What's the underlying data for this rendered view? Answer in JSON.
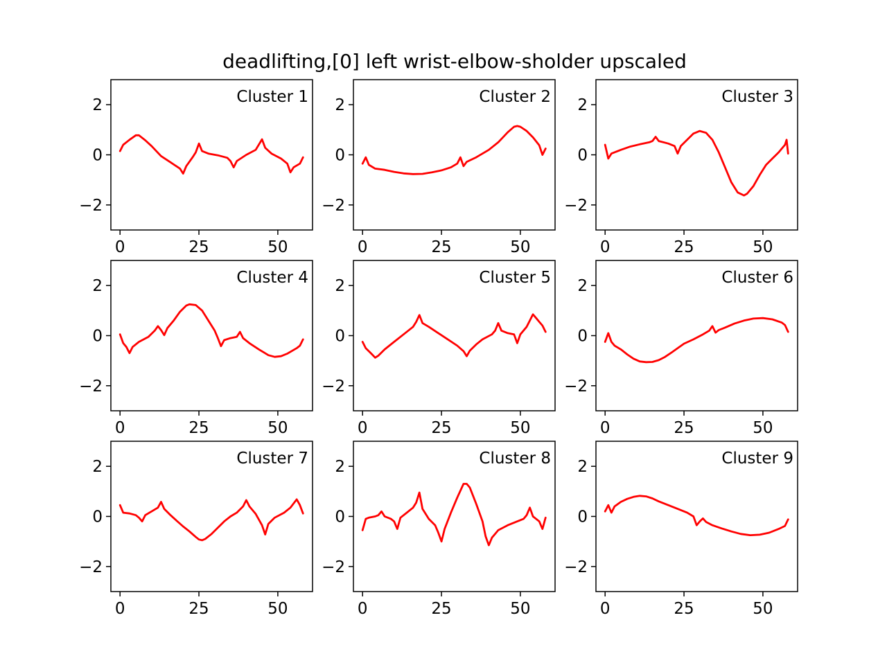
{
  "title": "deadlifting,[0] left wrist-elbow-sholder upscaled",
  "line_color": "#ff0000",
  "chart_data": {
    "type": "line",
    "layout": "3x3 grid of subplots",
    "xlim": [
      -2.9,
      61
    ],
    "ylim": [
      -3,
      3
    ],
    "x_ticks": [
      0,
      25,
      50
    ],
    "y_ticks": [
      -2,
      0,
      2
    ],
    "y_tick_labels": [
      "−2",
      "0",
      "2"
    ],
    "grid": false,
    "legend": "none",
    "panels": [
      {
        "label": "Cluster 1",
        "points": [
          [
            0,
            0.15
          ],
          [
            1,
            0.4
          ],
          [
            3,
            0.6
          ],
          [
            5,
            0.78
          ],
          [
            6,
            0.78
          ],
          [
            8,
            0.58
          ],
          [
            10,
            0.35
          ],
          [
            13,
            -0.05
          ],
          [
            16,
            -0.3
          ],
          [
            19,
            -0.55
          ],
          [
            20,
            -0.75
          ],
          [
            21,
            -0.45
          ],
          [
            23,
            -0.1
          ],
          [
            24,
            0.1
          ],
          [
            25,
            0.45
          ],
          [
            26,
            0.15
          ],
          [
            28,
            0.05
          ],
          [
            31,
            -0.02
          ],
          [
            34,
            -0.12
          ],
          [
            35,
            -0.25
          ],
          [
            36,
            -0.5
          ],
          [
            37,
            -0.25
          ],
          [
            40,
            0
          ],
          [
            43,
            0.2
          ],
          [
            45,
            0.62
          ],
          [
            46,
            0.28
          ],
          [
            48,
            0.05
          ],
          [
            51,
            -0.15
          ],
          [
            53,
            -0.35
          ],
          [
            54,
            -0.7
          ],
          [
            55,
            -0.5
          ],
          [
            57,
            -0.35
          ],
          [
            58,
            -0.1
          ]
        ]
      },
      {
        "label": "Cluster 2",
        "points": [
          [
            0,
            -0.35
          ],
          [
            1,
            -0.1
          ],
          [
            2,
            -0.4
          ],
          [
            4,
            -0.55
          ],
          [
            7,
            -0.6
          ],
          [
            10,
            -0.68
          ],
          [
            13,
            -0.74
          ],
          [
            16,
            -0.77
          ],
          [
            19,
            -0.76
          ],
          [
            22,
            -0.7
          ],
          [
            25,
            -0.62
          ],
          [
            28,
            -0.5
          ],
          [
            30,
            -0.35
          ],
          [
            31,
            -0.1
          ],
          [
            32,
            -0.45
          ],
          [
            33,
            -0.28
          ],
          [
            36,
            -0.1
          ],
          [
            40,
            0.2
          ],
          [
            43,
            0.5
          ],
          [
            46,
            0.9
          ],
          [
            48,
            1.12
          ],
          [
            49,
            1.15
          ],
          [
            50,
            1.12
          ],
          [
            52,
            0.95
          ],
          [
            54,
            0.7
          ],
          [
            56,
            0.38
          ],
          [
            57,
            0.0
          ],
          [
            58,
            0.25
          ]
        ]
      },
      {
        "label": "Cluster 3",
        "points": [
          [
            0,
            0.4
          ],
          [
            1,
            -0.15
          ],
          [
            2,
            0.05
          ],
          [
            5,
            0.2
          ],
          [
            8,
            0.33
          ],
          [
            11,
            0.42
          ],
          [
            14,
            0.5
          ],
          [
            15,
            0.55
          ],
          [
            16,
            0.72
          ],
          [
            17,
            0.55
          ],
          [
            20,
            0.45
          ],
          [
            22,
            0.35
          ],
          [
            23,
            0.05
          ],
          [
            24,
            0.35
          ],
          [
            26,
            0.6
          ],
          [
            28,
            0.85
          ],
          [
            30,
            0.95
          ],
          [
            32,
            0.88
          ],
          [
            34,
            0.6
          ],
          [
            36,
            0.1
          ],
          [
            38,
            -0.5
          ],
          [
            40,
            -1.1
          ],
          [
            42,
            -1.5
          ],
          [
            44,
            -1.62
          ],
          [
            45,
            -1.55
          ],
          [
            47,
            -1.25
          ],
          [
            49,
            -0.8
          ],
          [
            51,
            -0.4
          ],
          [
            53,
            -0.15
          ],
          [
            55,
            0.1
          ],
          [
            57,
            0.4
          ],
          [
            57.5,
            0.6
          ],
          [
            58,
            0.05
          ]
        ]
      },
      {
        "label": "Cluster 4",
        "points": [
          [
            0,
            0.05
          ],
          [
            1,
            -0.3
          ],
          [
            2,
            -0.45
          ],
          [
            3,
            -0.7
          ],
          [
            4,
            -0.45
          ],
          [
            6,
            -0.25
          ],
          [
            9,
            -0.05
          ],
          [
            11,
            0.2
          ],
          [
            12,
            0.38
          ],
          [
            13,
            0.22
          ],
          [
            14,
            0.02
          ],
          [
            15,
            0.3
          ],
          [
            17,
            0.6
          ],
          [
            19,
            0.95
          ],
          [
            21,
            1.2
          ],
          [
            22,
            1.25
          ],
          [
            24,
            1.22
          ],
          [
            26,
            1.0
          ],
          [
            28,
            0.6
          ],
          [
            30,
            0.2
          ],
          [
            31,
            -0.1
          ],
          [
            32,
            -0.42
          ],
          [
            33,
            -0.18
          ],
          [
            35,
            -0.1
          ],
          [
            37,
            -0.05
          ],
          [
            38,
            0.15
          ],
          [
            39,
            -0.1
          ],
          [
            41,
            -0.3
          ],
          [
            44,
            -0.55
          ],
          [
            47,
            -0.78
          ],
          [
            49,
            -0.85
          ],
          [
            51,
            -0.82
          ],
          [
            53,
            -0.72
          ],
          [
            56,
            -0.5
          ],
          [
            57,
            -0.4
          ],
          [
            58,
            -0.15
          ]
        ]
      },
      {
        "label": "Cluster 5",
        "points": [
          [
            0,
            -0.25
          ],
          [
            1,
            -0.5
          ],
          [
            3,
            -0.75
          ],
          [
            4,
            -0.88
          ],
          [
            5,
            -0.8
          ],
          [
            7,
            -0.55
          ],
          [
            10,
            -0.25
          ],
          [
            13,
            0.05
          ],
          [
            16,
            0.35
          ],
          [
            17,
            0.55
          ],
          [
            18,
            0.82
          ],
          [
            19,
            0.5
          ],
          [
            21,
            0.35
          ],
          [
            24,
            0.1
          ],
          [
            27,
            -0.15
          ],
          [
            30,
            -0.4
          ],
          [
            32,
            -0.62
          ],
          [
            33,
            -0.82
          ],
          [
            34,
            -0.6
          ],
          [
            36,
            -0.35
          ],
          [
            38,
            -0.15
          ],
          [
            41,
            0.05
          ],
          [
            42,
            0.2
          ],
          [
            43,
            0.5
          ],
          [
            44,
            0.2
          ],
          [
            46,
            0.1
          ],
          [
            48,
            0.05
          ],
          [
            49,
            -0.3
          ],
          [
            50,
            0.05
          ],
          [
            52,
            0.35
          ],
          [
            54,
            0.85
          ],
          [
            55,
            0.7
          ],
          [
            56,
            0.55
          ],
          [
            57,
            0.4
          ],
          [
            58,
            0.15
          ]
        ]
      },
      {
        "label": "Cluster 6",
        "points": [
          [
            0,
            -0.25
          ],
          [
            1,
            0.1
          ],
          [
            2,
            -0.25
          ],
          [
            3,
            -0.4
          ],
          [
            5,
            -0.55
          ],
          [
            7,
            -0.75
          ],
          [
            9,
            -0.92
          ],
          [
            11,
            -1.03
          ],
          [
            13,
            -1.06
          ],
          [
            15,
            -1.05
          ],
          [
            17,
            -0.98
          ],
          [
            19,
            -0.85
          ],
          [
            21,
            -0.68
          ],
          [
            23,
            -0.5
          ],
          [
            25,
            -0.32
          ],
          [
            28,
            -0.15
          ],
          [
            31,
            0.05
          ],
          [
            33,
            0.2
          ],
          [
            34,
            0.38
          ],
          [
            35,
            0.12
          ],
          [
            36,
            0.22
          ],
          [
            38,
            0.32
          ],
          [
            41,
            0.48
          ],
          [
            44,
            0.6
          ],
          [
            47,
            0.68
          ],
          [
            50,
            0.7
          ],
          [
            53,
            0.65
          ],
          [
            56,
            0.52
          ],
          [
            57,
            0.42
          ],
          [
            58,
            0.15
          ]
        ]
      },
      {
        "label": "Cluster 7",
        "points": [
          [
            0,
            0.45
          ],
          [
            1,
            0.15
          ],
          [
            3,
            0.12
          ],
          [
            5,
            0.05
          ],
          [
            6,
            -0.05
          ],
          [
            7,
            -0.2
          ],
          [
            8,
            0.05
          ],
          [
            10,
            0.2
          ],
          [
            12,
            0.35
          ],
          [
            13,
            0.58
          ],
          [
            14,
            0.3
          ],
          [
            16,
            0.05
          ],
          [
            18,
            -0.18
          ],
          [
            20,
            -0.4
          ],
          [
            22,
            -0.6
          ],
          [
            24,
            -0.82
          ],
          [
            25,
            -0.92
          ],
          [
            26,
            -0.95
          ],
          [
            27,
            -0.9
          ],
          [
            29,
            -0.7
          ],
          [
            31,
            -0.45
          ],
          [
            33,
            -0.2
          ],
          [
            35,
            0.0
          ],
          [
            37,
            0.15
          ],
          [
            39,
            0.4
          ],
          [
            40,
            0.65
          ],
          [
            41,
            0.4
          ],
          [
            43,
            0.1
          ],
          [
            45,
            -0.35
          ],
          [
            46,
            -0.72
          ],
          [
            47,
            -0.3
          ],
          [
            49,
            -0.05
          ],
          [
            52,
            0.15
          ],
          [
            54,
            0.35
          ],
          [
            56,
            0.68
          ],
          [
            57,
            0.45
          ],
          [
            58,
            0.12
          ]
        ]
      },
      {
        "label": "Cluster 8",
        "points": [
          [
            0,
            -0.55
          ],
          [
            1,
            -0.1
          ],
          [
            2,
            -0.05
          ],
          [
            4,
            0.0
          ],
          [
            5,
            0.05
          ],
          [
            6,
            0.2
          ],
          [
            7,
            0.0
          ],
          [
            9,
            -0.1
          ],
          [
            10,
            -0.2
          ],
          [
            11,
            -0.5
          ],
          [
            12,
            -0.05
          ],
          [
            14,
            0.15
          ],
          [
            16,
            0.35
          ],
          [
            17,
            0.55
          ],
          [
            18,
            0.95
          ],
          [
            19,
            0.3
          ],
          [
            21,
            -0.1
          ],
          [
            23,
            -0.35
          ],
          [
            24,
            -0.65
          ],
          [
            25,
            -1.0
          ],
          [
            26,
            -0.5
          ],
          [
            28,
            0.15
          ],
          [
            30,
            0.75
          ],
          [
            32,
            1.3
          ],
          [
            33,
            1.3
          ],
          [
            34,
            1.15
          ],
          [
            36,
            0.5
          ],
          [
            38,
            -0.2
          ],
          [
            39,
            -0.8
          ],
          [
            40,
            -1.15
          ],
          [
            41,
            -0.85
          ],
          [
            43,
            -0.55
          ],
          [
            46,
            -0.35
          ],
          [
            49,
            -0.2
          ],
          [
            51,
            -0.1
          ],
          [
            52,
            0.05
          ],
          [
            53,
            0.35
          ],
          [
            54,
            0.0
          ],
          [
            56,
            -0.2
          ],
          [
            57,
            -0.5
          ],
          [
            58,
            -0.05
          ]
        ]
      },
      {
        "label": "Cluster 9",
        "points": [
          [
            0,
            0.2
          ],
          [
            1,
            0.45
          ],
          [
            2,
            0.15
          ],
          [
            3,
            0.4
          ],
          [
            5,
            0.58
          ],
          [
            7,
            0.7
          ],
          [
            9,
            0.78
          ],
          [
            11,
            0.82
          ],
          [
            13,
            0.8
          ],
          [
            15,
            0.72
          ],
          [
            17,
            0.6
          ],
          [
            20,
            0.45
          ],
          [
            23,
            0.3
          ],
          [
            26,
            0.15
          ],
          [
            28,
            0.0
          ],
          [
            29,
            -0.35
          ],
          [
            30,
            -0.2
          ],
          [
            31,
            -0.08
          ],
          [
            32,
            -0.22
          ],
          [
            34,
            -0.35
          ],
          [
            37,
            -0.48
          ],
          [
            40,
            -0.6
          ],
          [
            43,
            -0.7
          ],
          [
            46,
            -0.75
          ],
          [
            49,
            -0.73
          ],
          [
            52,
            -0.65
          ],
          [
            55,
            -0.5
          ],
          [
            57,
            -0.38
          ],
          [
            58,
            -0.12
          ]
        ]
      }
    ]
  }
}
